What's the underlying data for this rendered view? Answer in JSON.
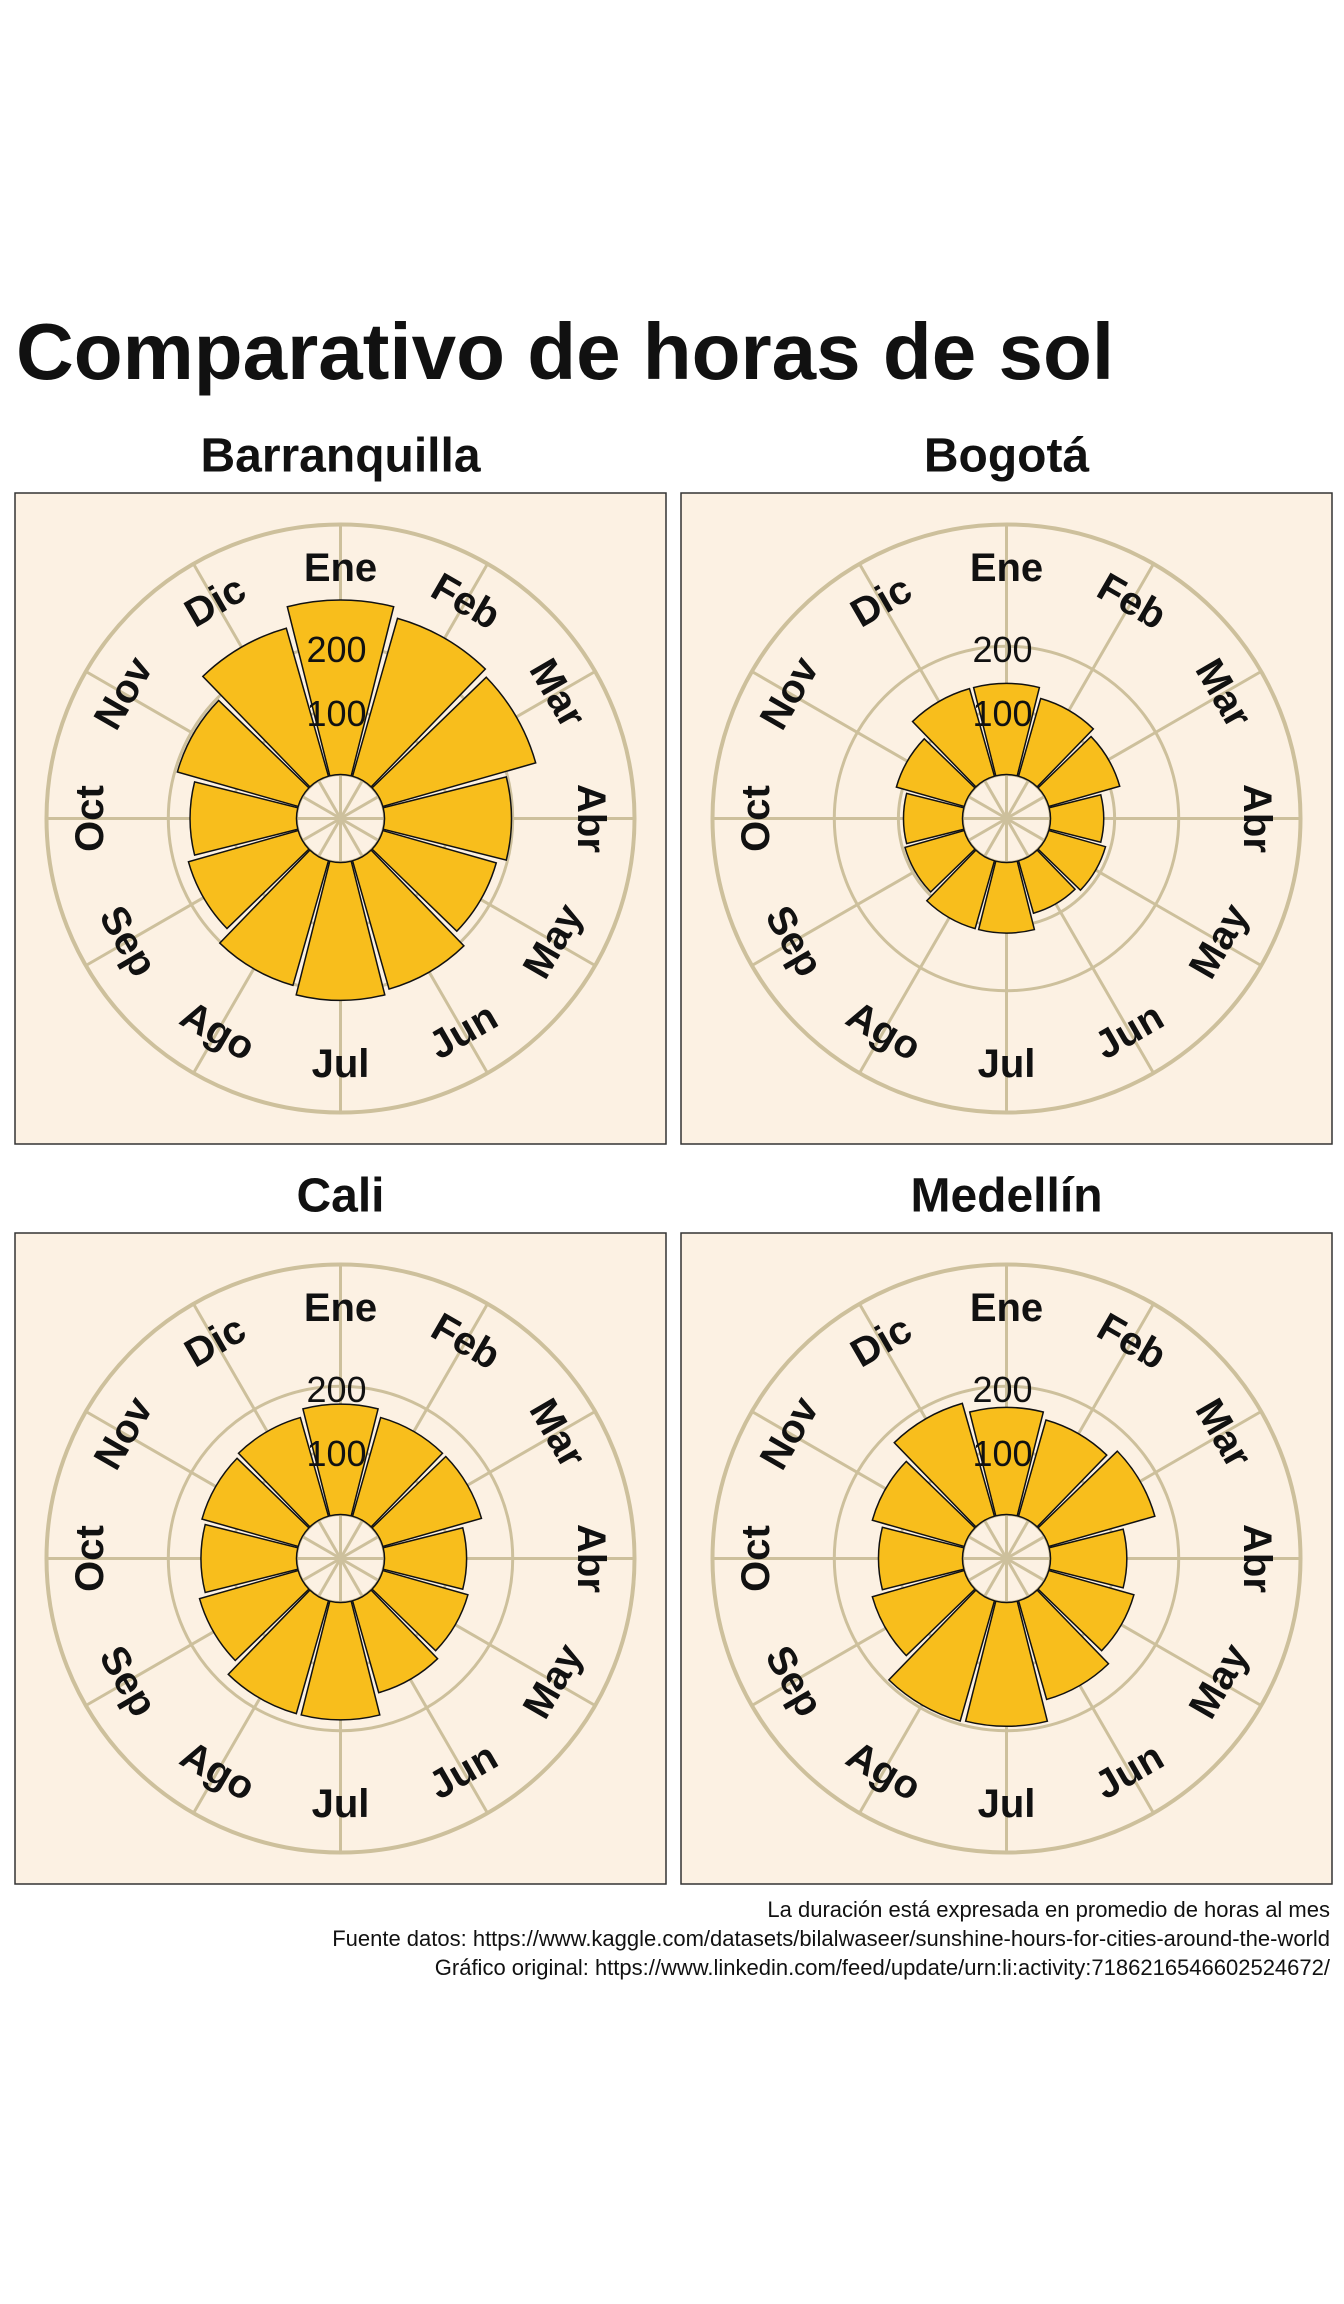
{
  "title": "Comparativo de horas de sol",
  "caption": [
    "La duración está expresada en promedio de horas al mes",
    "Fuente datos: https://www.kaggle.com/datasets/bilalwaseer/sunshine-hours-for-cities-around-the-world",
    "Gráfico original: https://www.linkedin.com/feed/update/urn:li:activity:7186216546602524672/"
  ],
  "chart_data": [
    {
      "type": "polar_bar",
      "title": "Barranquilla",
      "color": "#f8be1c",
      "categories": [
        "Ene",
        "Feb",
        "Mar",
        "Abr",
        "May",
        "Jun",
        "Jul",
        "Ago",
        "Sep",
        "Oct",
        "Nov",
        "Dic"
      ],
      "values": [
        272,
        256,
        248,
        198,
        184,
        208,
        215,
        202,
        178,
        166,
        196,
        240
      ],
      "ylim": [
        0,
        390
      ],
      "yticks": [
        100,
        200
      ]
    },
    {
      "type": "polar_bar",
      "title": "Bogotá",
      "color": "#f8be1c",
      "categories": [
        "Ene",
        "Feb",
        "Mar",
        "Abr",
        "May",
        "Jun",
        "Jul",
        "Ago",
        "Sep",
        "Oct",
        "Nov",
        "Dic"
      ],
      "values": [
        142,
        126,
        115,
        83,
        92,
        85,
        110,
        110,
        96,
        92,
        110,
        142
      ],
      "ylim": [
        0,
        390
      ],
      "yticks": [
        100,
        200
      ]
    },
    {
      "type": "polar_bar",
      "title": "Cali",
      "color": "#f8be1c",
      "categories": [
        "Ene",
        "Feb",
        "Mar",
        "Abr",
        "May",
        "Jun",
        "Jul",
        "Ago",
        "Sep",
        "Oct",
        "Nov",
        "Dic"
      ],
      "values": [
        172,
        160,
        160,
        128,
        138,
        149,
        183,
        183,
        160,
        149,
        156,
        160
      ],
      "ylim": [
        0,
        390
      ],
      "yticks": [
        100,
        200
      ]
    },
    {
      "type": "polar_bar",
      "title": "Medellín",
      "color": "#f8be1c",
      "categories": [
        "Ene",
        "Feb",
        "Mar",
        "Abr",
        "May",
        "Jun",
        "Jul",
        "Ago",
        "Sep",
        "Oct",
        "Nov",
        "Dic"
      ],
      "values": [
        167,
        156,
        172,
        119,
        138,
        160,
        193,
        195,
        149,
        131,
        149,
        183
      ],
      "ylim": [
        0,
        390
      ],
      "yticks": [
        100,
        200
      ]
    }
  ]
}
